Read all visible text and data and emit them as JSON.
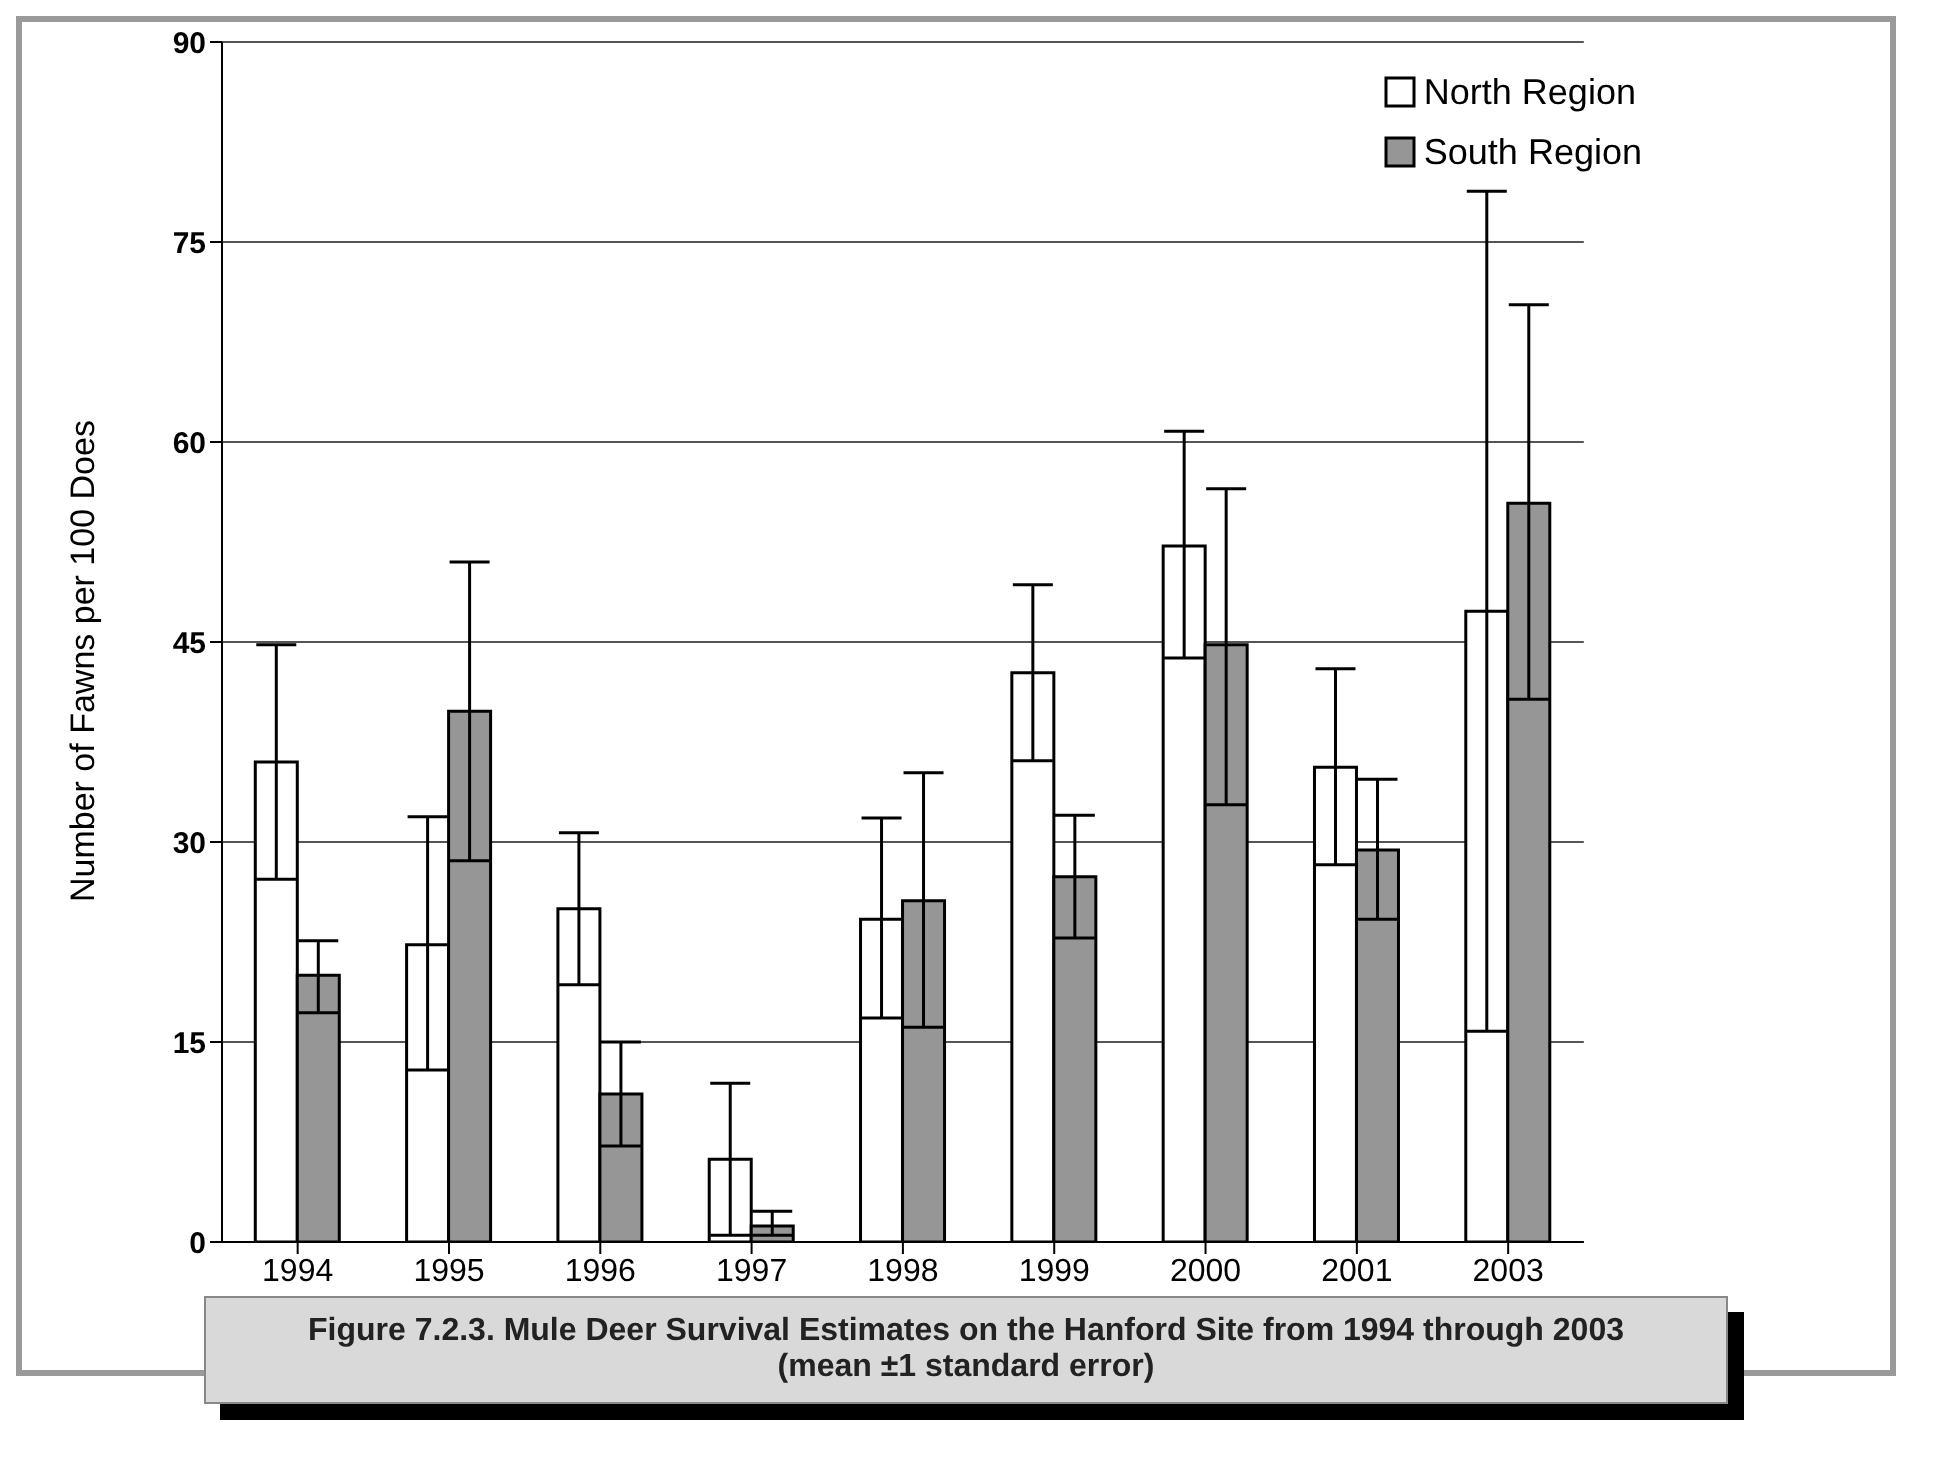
{
  "chart_data": {
    "type": "bar",
    "ylabel": "Number of Fawns per 100 Does",
    "categories": [
      "1994",
      "1995",
      "1996",
      "1997",
      "1998",
      "1999",
      "2000",
      "2001",
      "2003"
    ],
    "series": [
      {
        "name": "North Region",
        "color": "#ffffff",
        "values": [
          36,
          22.3,
          25,
          6.2,
          24.2,
          42.7,
          52.2,
          35.6,
          47.3
        ],
        "errors": [
          [
            27.2,
            44.8
          ],
          [
            12.9,
            31.9
          ],
          [
            19.3,
            30.7
          ],
          [
            0.5,
            11.9
          ],
          [
            16.8,
            31.8
          ],
          [
            36.1,
            49.3
          ],
          [
            43.8,
            60.8
          ],
          [
            28.3,
            43
          ],
          [
            15.8,
            78.8
          ]
        ]
      },
      {
        "name": "South Region",
        "color": "#969696",
        "values": [
          20,
          39.8,
          11.1,
          1.2,
          25.6,
          27.4,
          44.8,
          29.4,
          55.4
        ],
        "errors": [
          [
            17.2,
            22.6
          ],
          [
            28.6,
            51
          ],
          [
            7.2,
            15
          ],
          [
            0.5,
            2.3
          ],
          [
            16.1,
            35.2
          ],
          [
            22.8,
            32
          ],
          [
            32.8,
            56.5
          ],
          [
            24.2,
            34.7
          ],
          [
            40.7,
            70.3
          ]
        ]
      }
    ],
    "ylim": [
      0,
      90
    ],
    "yticks": [
      0,
      15,
      30,
      45,
      60,
      75,
      90
    ],
    "grid": "y",
    "legend": "top right",
    "annotations": [
      "Figure 7.2.3.  Mule Deer Survival Estimates on the Hanford Site from 1994 through 2003 (mean ±1 standard error)"
    ]
  }
}
